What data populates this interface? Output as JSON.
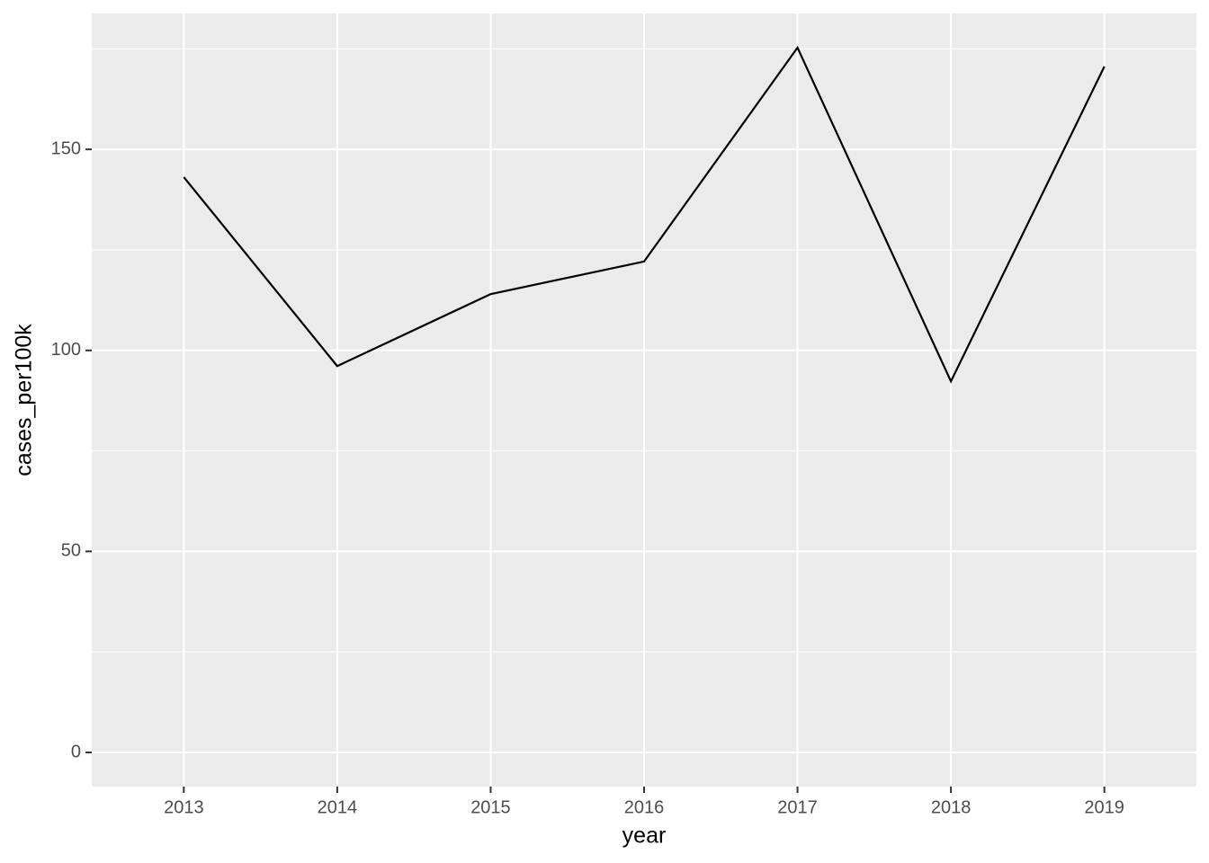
{
  "chart_data": {
    "type": "line",
    "x_label": "year",
    "y_label": "cases_per100k",
    "x": [
      2013,
      2014,
      2015,
      2016,
      2017,
      2018,
      2019
    ],
    "series": [
      {
        "color": "#000000",
        "values": [
          143.1,
          96.1,
          114.0,
          122.1,
          175.3,
          92.3,
          170.6
        ]
      }
    ],
    "xlim": [
      2012.4,
      2019.6
    ],
    "ylim": [
      -8.5,
      183.8
    ],
    "xticks": [
      2013,
      2014,
      2015,
      2016,
      2017,
      2018,
      2019
    ],
    "yticks": [
      0,
      50,
      100,
      150
    ],
    "y_minor_ticks": [
      25,
      75,
      125,
      175
    ],
    "grid": true
  }
}
